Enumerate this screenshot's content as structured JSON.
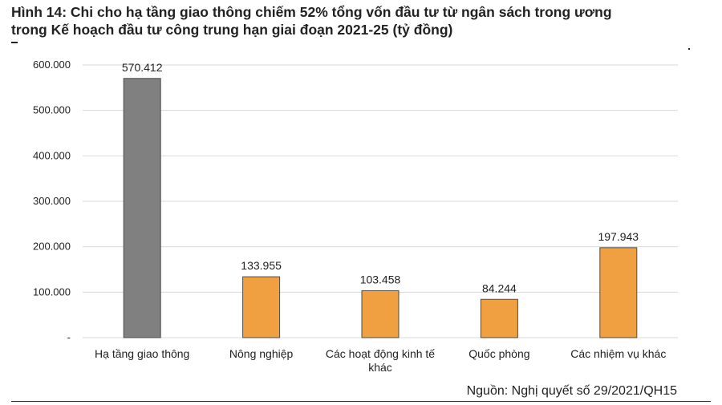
{
  "title_line1": "Hình 14: Chi cho hạ tầng giao thông chiếm 52% tổng vốn đầu tư từ ngân sách trong ương",
  "title_line2": "trong Kế hoạch đầu tư công trung hạn giai đoạn 2021-25 (tỷ đồng)",
  "source": "Nguồn: Nghị quyết số 29/2021/QH15",
  "chart_data": {
    "type": "bar",
    "title": "",
    "xlabel": "",
    "ylabel": "",
    "ylim": [
      0,
      600000
    ],
    "y_ticks": [
      0,
      100000,
      200000,
      300000,
      400000,
      500000,
      600000
    ],
    "y_tick_labels": [
      "-",
      "100.000",
      "200.000",
      "300.000",
      "400.000",
      "500.000",
      "600.000"
    ],
    "grid": true,
    "categories": [
      [
        "Hạ tầng giao thông"
      ],
      [
        "Nông nghiệp"
      ],
      [
        "Các hoạt động kinh tế",
        "khác"
      ],
      [
        "Quốc phòng"
      ],
      [
        "Các nhiệm vụ khác"
      ]
    ],
    "values": [
      570412,
      133955,
      103458,
      84244,
      197943
    ],
    "value_labels": [
      "570.412",
      "133.955",
      "103.458",
      "84.244",
      "197.943"
    ],
    "colors": [
      "#808080",
      "#f0a040",
      "#f0a040",
      "#f0a040",
      "#f0a040"
    ],
    "bar_border": "#4d4d4d",
    "grid_color": "#d9d9d9"
  }
}
